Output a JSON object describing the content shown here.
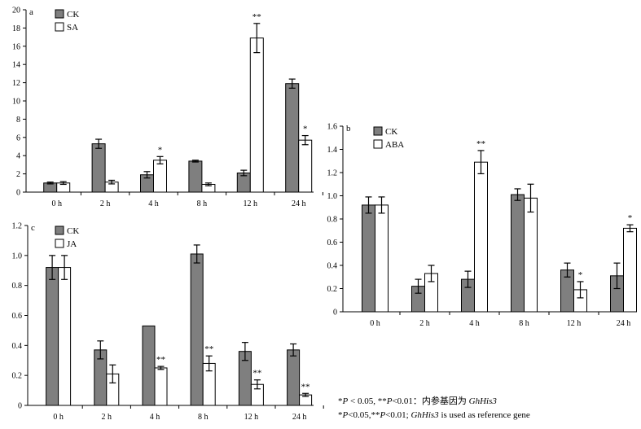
{
  "chart_data": [
    {
      "panel": "a",
      "type": "bar",
      "categories": [
        "0 h",
        "2 h",
        "4 h",
        "8 h",
        "12 h",
        "24 h"
      ],
      "ylim": [
        0,
        20
      ],
      "yticks": [
        0,
        2,
        4,
        6,
        8,
        10,
        12,
        14,
        16,
        18,
        20
      ],
      "series": [
        {
          "name": "CK",
          "color": "#7f7f7f",
          "values": [
            1.0,
            5.3,
            1.9,
            3.4,
            2.1,
            11.9
          ],
          "errors": [
            0.1,
            0.5,
            0.35,
            0.1,
            0.3,
            0.5
          ]
        },
        {
          "name": "SA",
          "color": "#ffffff",
          "values": [
            1.0,
            1.1,
            3.5,
            0.85,
            16.9,
            5.7
          ],
          "errors": [
            0.15,
            0.2,
            0.4,
            0.15,
            1.6,
            0.5
          ]
        }
      ],
      "significance": [
        "",
        "",
        "*",
        "",
        "**",
        "*"
      ],
      "legend": "top-left"
    },
    {
      "panel": "b",
      "type": "bar",
      "categories": [
        "0 h",
        "2 h",
        "4 h",
        "8 h",
        "12 h",
        "24 h"
      ],
      "ylim": [
        0,
        1.6
      ],
      "yticks": [
        "0",
        "0.2",
        "0.4",
        "0.6",
        "0.8",
        "1.0",
        "1.2",
        "1.4",
        "1.6"
      ],
      "series": [
        {
          "name": "CK",
          "color": "#7f7f7f",
          "values": [
            0.92,
            0.22,
            0.28,
            1.01,
            0.36,
            0.31
          ],
          "errors": [
            0.07,
            0.06,
            0.07,
            0.05,
            0.06,
            0.11
          ]
        },
        {
          "name": "ABA",
          "color": "#ffffff",
          "values": [
            0.92,
            0.33,
            1.29,
            0.98,
            0.19,
            0.72
          ],
          "errors": [
            0.07,
            0.07,
            0.1,
            0.12,
            0.07,
            0.03
          ]
        }
      ],
      "significance": [
        "",
        "",
        "**",
        "",
        "*",
        "*"
      ],
      "legend": "top-left"
    },
    {
      "panel": "c",
      "type": "bar",
      "categories": [
        "0 h",
        "2 h",
        "4 h",
        "8 h",
        "12 h",
        "24 h"
      ],
      "ylim": [
        0,
        1.2
      ],
      "yticks": [
        "0",
        "0.2",
        "0.4",
        "0.6",
        "0.8",
        "1.0",
        "1.2"
      ],
      "series": [
        {
          "name": "CK",
          "color": "#7f7f7f",
          "values": [
            0.92,
            0.37,
            0.53,
            1.01,
            0.36,
            0.37
          ],
          "errors": [
            0.08,
            0.06,
            0.0,
            0.06,
            0.06,
            0.04
          ]
        },
        {
          "name": "JA",
          "color": "#ffffff",
          "values": [
            0.92,
            0.21,
            0.25,
            0.28,
            0.14,
            0.07
          ],
          "errors": [
            0.08,
            0.06,
            0.01,
            0.05,
            0.03,
            0.01
          ]
        }
      ],
      "significance": [
        "",
        "",
        "**",
        "**",
        "**",
        "**"
      ],
      "legend": "top-left"
    }
  ],
  "footnotes": {
    "line1_prefix": "*",
    "line1_p1": "P",
    "line1_mid1": " < 0.05, **",
    "line1_p2": "P",
    "line1_mid2": "<0.01：内参基因为 ",
    "line1_gene": "GhHis3",
    "line2_prefix": "*",
    "line2_p1": "P",
    "line2_mid1": "<0.05,**",
    "line2_p2": "P",
    "line2_mid2": "<0.01; ",
    "line2_gene": "GhHis3",
    "line2_suffix": " is used as reference gene"
  }
}
